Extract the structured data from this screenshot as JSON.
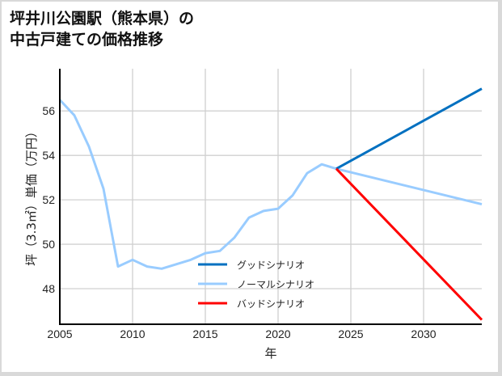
{
  "title_line1": "坪井川公園駅（熊本県）の",
  "title_line2": "中古戸建ての価格推移",
  "chart_data": {
    "type": "line",
    "title": "坪井川公園駅（熊本県）の中古戸建ての価格推移",
    "xlabel": "年",
    "ylabel": "坪（3.3㎡）単価（万円）",
    "xlim": [
      2005,
      2034
    ],
    "ylim": [
      46.4,
      57.9
    ],
    "x_ticks": [
      2005,
      2010,
      2015,
      2020,
      2025,
      2030
    ],
    "y_ticks": [
      48,
      50,
      52,
      54,
      56
    ],
    "grid": true,
    "legend_position": "center-bottom",
    "series": [
      {
        "name": "ノーマルシナリオ",
        "color": "#99ccff",
        "x": [
          2005,
          2006,
          2007,
          2008,
          2009,
          2010,
          2011,
          2012,
          2013,
          2014,
          2015,
          2016,
          2017,
          2018,
          2019,
          2020,
          2021,
          2022,
          2023,
          2024,
          2034
        ],
        "values": [
          56.5,
          55.8,
          54.4,
          52.5,
          49.0,
          49.3,
          49.0,
          48.9,
          49.1,
          49.3,
          49.6,
          49.7,
          50.3,
          51.2,
          51.5,
          51.6,
          52.2,
          53.2,
          53.6,
          53.4,
          51.8
        ]
      },
      {
        "name": "グッドシナリオ",
        "color": "#0070c0",
        "x": [
          2024,
          2034
        ],
        "values": [
          53.4,
          57.0
        ]
      },
      {
        "name": "バッドシナリオ",
        "color": "#ff0000",
        "x": [
          2024,
          2034
        ],
        "values": [
          53.4,
          46.6
        ]
      }
    ]
  },
  "legend": [
    {
      "label": "グッドシナリオ",
      "color": "#0070c0"
    },
    {
      "label": "ノーマルシナリオ",
      "color": "#99ccff"
    },
    {
      "label": "バッドシナリオ",
      "color": "#ff0000"
    }
  ]
}
